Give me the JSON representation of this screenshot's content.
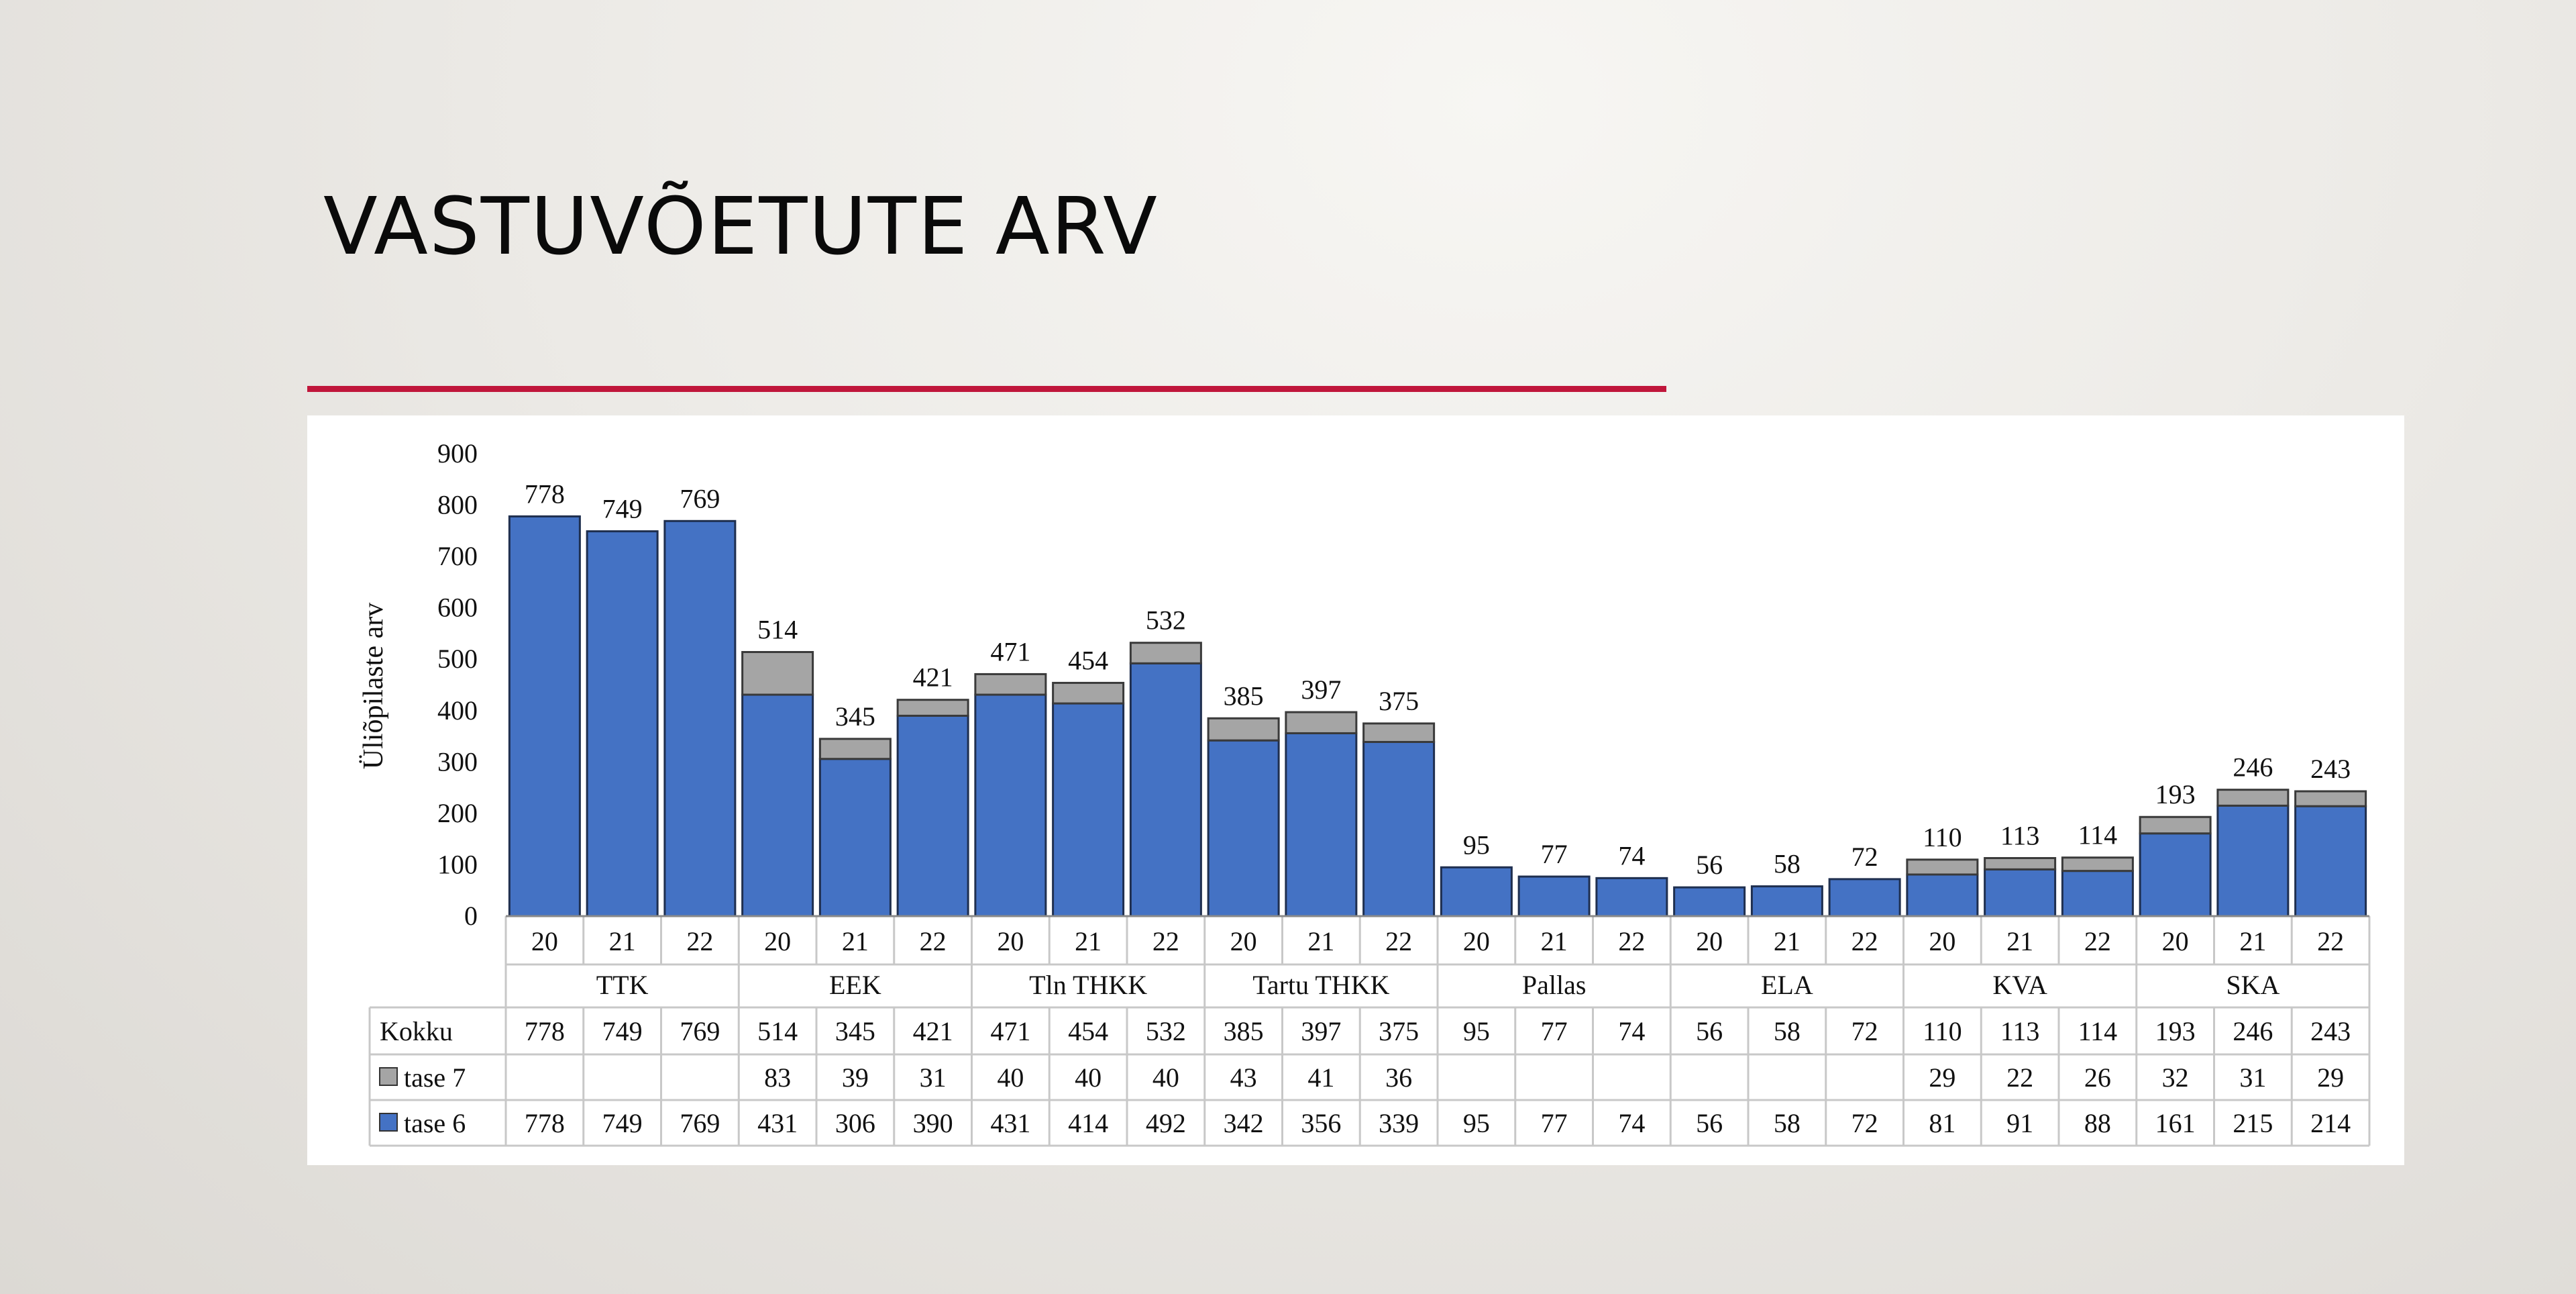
{
  "slide": {
    "title": "VASTUVÕETUTE  ARV",
    "accent_color": "#c0163b"
  },
  "chart_data": {
    "type": "bar",
    "stacked": true,
    "ylabel": "Üliõpilaste arv",
    "ylim": [
      0,
      900
    ],
    "yticks": [
      0,
      100,
      200,
      300,
      400,
      500,
      600,
      700,
      800,
      900
    ],
    "grid": false,
    "legend": "in data table",
    "groups": [
      {
        "name": "TTK",
        "years": [
          "20",
          "21",
          "22"
        ]
      },
      {
        "name": "EEK",
        "years": [
          "20",
          "21",
          "22"
        ]
      },
      {
        "name": "Tln THKK",
        "years": [
          "20",
          "21",
          "22"
        ]
      },
      {
        "name": "Tartu THKK",
        "years": [
          "20",
          "21",
          "22"
        ]
      },
      {
        "name": "Pallas",
        "years": [
          "20",
          "21",
          "22"
        ]
      },
      {
        "name": "ELA",
        "years": [
          "20",
          "21",
          "22"
        ]
      },
      {
        "name": "KVA",
        "years": [
          "20",
          "21",
          "22"
        ]
      },
      {
        "name": "SKA",
        "years": [
          "20",
          "21",
          "22"
        ]
      }
    ],
    "totals_label": "Kokku",
    "totals": [
      778,
      749,
      769,
      514,
      345,
      421,
      471,
      454,
      532,
      385,
      397,
      375,
      95,
      77,
      74,
      56,
      58,
      72,
      110,
      113,
      114,
      193,
      246,
      243
    ],
    "series": [
      {
        "name": "tase 6",
        "color": "#4472c4",
        "values": [
          778,
          749,
          769,
          431,
          306,
          390,
          431,
          414,
          492,
          342,
          356,
          339,
          95,
          77,
          74,
          56,
          58,
          72,
          81,
          91,
          88,
          161,
          215,
          214
        ]
      },
      {
        "name": "tase 7",
        "color": "#a5a5a5",
        "values": [
          null,
          null,
          null,
          83,
          39,
          31,
          40,
          40,
          40,
          43,
          41,
          36,
          null,
          null,
          null,
          null,
          null,
          null,
          29,
          22,
          26,
          32,
          31,
          29
        ]
      }
    ]
  }
}
